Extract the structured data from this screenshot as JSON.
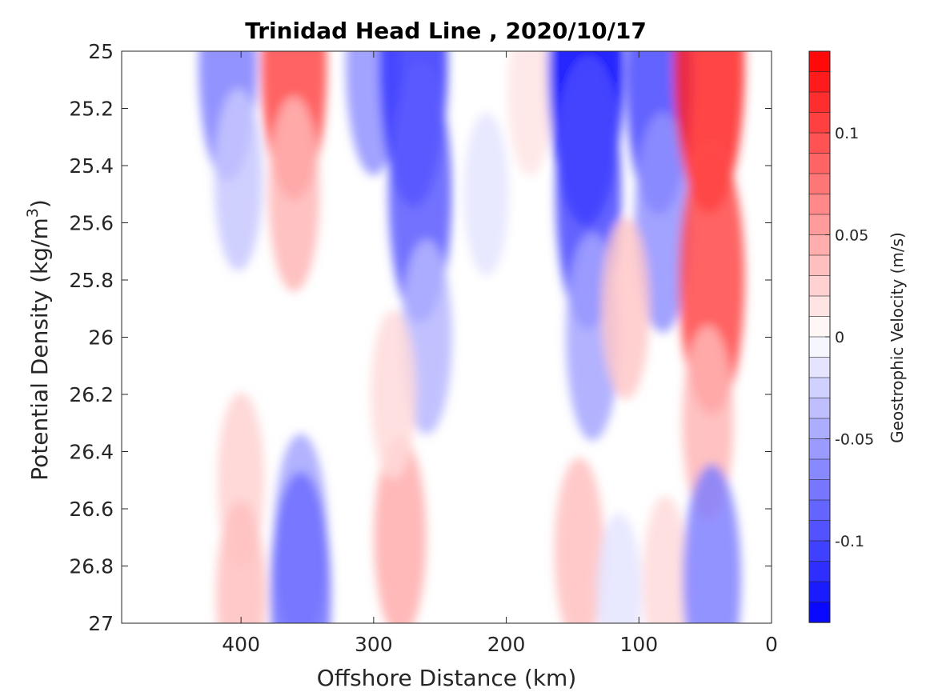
{
  "chart_data": {
    "type": "heatmap",
    "title": "Trinidad Head Line , 2020/10/17",
    "xlabel": "Offshore Distance (km)",
    "ylabel": "Potential Density (kg/m",
    "ylabel_sup": "3",
    "ylabel_close": ")",
    "xlim": [
      490,
      0
    ],
    "ylim": [
      25,
      27
    ],
    "x_reversed": true,
    "y_reversed": true,
    "xticks": [
      400,
      300,
      200,
      100,
      0
    ],
    "yticks": [
      25,
      25.2,
      25.4,
      25.6,
      25.8,
      26,
      26.2,
      26.4,
      26.6,
      26.8,
      27
    ],
    "x_tick_labels": [
      "400",
      "300",
      "200",
      "100",
      "0"
    ],
    "y_tick_labels": [
      "25",
      "25.2",
      "25.4",
      "25.6",
      "25.8",
      "26",
      "26.2",
      "26.4",
      "26.6",
      "26.8",
      "27"
    ],
    "grid": false,
    "colorbar": {
      "label": "Geostrophic Velocity (m/s)",
      "range": [
        -0.14,
        0.14
      ],
      "step": 0.01,
      "ticks": [
        0.1,
        0.05,
        0,
        -0.05,
        -0.1
      ],
      "tick_labels": [
        "0.1",
        "0.05",
        "0",
        "-0.05",
        "-0.1"
      ],
      "negative_color": "#0000ff",
      "positive_color": "#ff0000",
      "zero_color": "#ffffff"
    },
    "features": [
      {
        "x": 410,
        "y": 25.05,
        "value": -0.07
      },
      {
        "x": 402,
        "y": 25.45,
        "value": -0.03
      },
      {
        "x": 360,
        "y": 25.05,
        "value": 0.1
      },
      {
        "x": 360,
        "y": 25.5,
        "value": 0.04
      },
      {
        "x": 300,
        "y": 25.05,
        "value": -0.06
      },
      {
        "x": 270,
        "y": 25.05,
        "value": -0.11
      },
      {
        "x": 265,
        "y": 25.5,
        "value": -0.09
      },
      {
        "x": 260,
        "y": 26.0,
        "value": -0.04
      },
      {
        "x": 215,
        "y": 25.5,
        "value": -0.015
      },
      {
        "x": 182,
        "y": 25.15,
        "value": 0.015
      },
      {
        "x": 140,
        "y": 25.05,
        "value": -0.14
      },
      {
        "x": 138,
        "y": 25.5,
        "value": -0.1
      },
      {
        "x": 135,
        "y": 26.0,
        "value": -0.05
      },
      {
        "x": 85,
        "y": 25.1,
        "value": -0.1
      },
      {
        "x": 82,
        "y": 25.6,
        "value": -0.06
      },
      {
        "x": 110,
        "y": 25.9,
        "value": 0.03
      },
      {
        "x": 47,
        "y": 25.05,
        "value": 0.12
      },
      {
        "x": 45,
        "y": 25.8,
        "value": 0.1
      },
      {
        "x": 48,
        "y": 26.3,
        "value": 0.04
      },
      {
        "x": 400,
        "y": 26.5,
        "value": 0.025
      },
      {
        "x": 400,
        "y": 26.9,
        "value": 0.035
      },
      {
        "x": 355,
        "y": 26.7,
        "value": -0.05
      },
      {
        "x": 355,
        "y": 26.9,
        "value": -0.08
      },
      {
        "x": 280,
        "y": 26.7,
        "value": 0.045
      },
      {
        "x": 285,
        "y": 26.2,
        "value": 0.02
      },
      {
        "x": 145,
        "y": 26.75,
        "value": 0.035
      },
      {
        "x": 115,
        "y": 26.9,
        "value": -0.015
      },
      {
        "x": 80,
        "y": 26.85,
        "value": 0.02
      },
      {
        "x": 45,
        "y": 26.85,
        "value": -0.07
      }
    ]
  }
}
